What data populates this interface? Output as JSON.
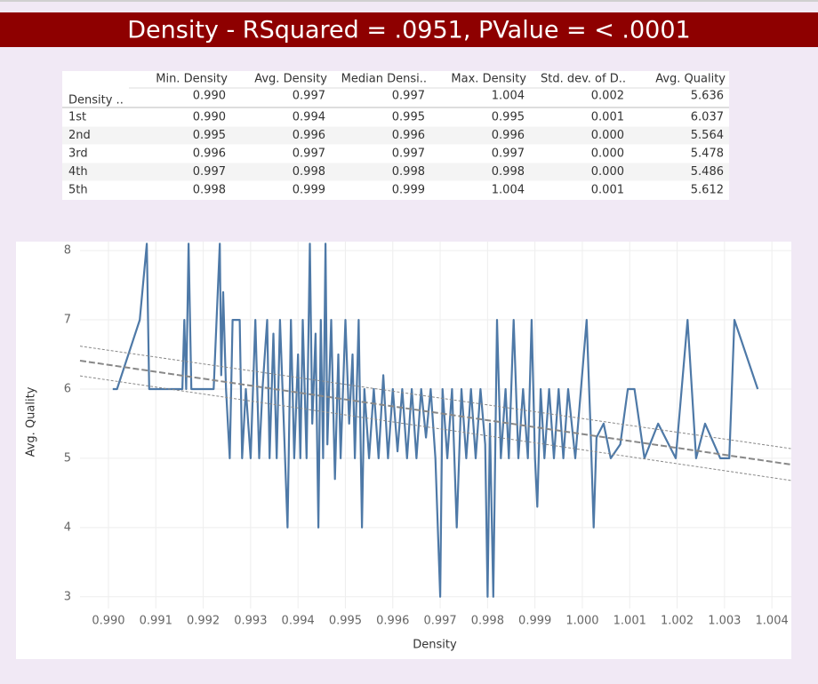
{
  "title": "Density - RSquared = .0951, PValue = < .0001",
  "table": {
    "corner": "Density ..",
    "columns": [
      "Min. Density",
      "Avg. Density",
      "Median Densi..",
      "Max. Density",
      "Std. dev. of D..",
      "Avg. Quality"
    ],
    "total": [
      "0.990",
      "0.997",
      "0.997",
      "1.004",
      "0.002",
      "5.636"
    ],
    "rows": [
      {
        "label": "1st",
        "cells": [
          "0.990",
          "0.994",
          "0.995",
          "0.995",
          "0.001",
          "6.037"
        ]
      },
      {
        "label": "2nd",
        "cells": [
          "0.995",
          "0.996",
          "0.996",
          "0.996",
          "0.000",
          "5.564"
        ]
      },
      {
        "label": "3rd",
        "cells": [
          "0.996",
          "0.997",
          "0.997",
          "0.997",
          "0.000",
          "5.478"
        ]
      },
      {
        "label": "4th",
        "cells": [
          "0.997",
          "0.998",
          "0.998",
          "0.998",
          "0.000",
          "5.486"
        ]
      },
      {
        "label": "5th",
        "cells": [
          "0.998",
          "0.999",
          "0.999",
          "1.004",
          "0.001",
          "5.612"
        ]
      }
    ]
  },
  "chart_data": {
    "type": "line",
    "x_label": "Density",
    "y_label": "Avg. Quality",
    "color": "#4e79a7",
    "x": [
      0.99009,
      0.99018,
      0.99066,
      0.99081,
      0.99086,
      0.99156,
      0.9916,
      0.99164,
      0.99169,
      0.99175,
      0.99188,
      0.99222,
      0.99235,
      0.99238,
      0.99242,
      0.99248,
      0.99256,
      0.99262,
      0.99277,
      0.99282,
      0.9929,
      0.993,
      0.9931,
      0.99318,
      0.99325,
      0.99335,
      0.9934,
      0.99348,
      0.99355,
      0.99362,
      0.9937,
      0.99378,
      0.99385,
      0.99392,
      0.994,
      0.99405,
      0.9941,
      0.99418,
      0.99425,
      0.9943,
      0.99437,
      0.99443,
      0.99448,
      0.99453,
      0.99458,
      0.99462,
      0.9947,
      0.99478,
      0.99485,
      0.9949,
      0.995,
      0.99508,
      0.99515,
      0.9952,
      0.99528,
      0.99535,
      0.9954,
      0.9955,
      0.9956,
      0.9957,
      0.9958,
      0.9959,
      0.996,
      0.9961,
      0.9962,
      0.9963,
      0.9964,
      0.9965,
      0.9966,
      0.9967,
      0.9968,
      0.9969,
      0.997,
      0.99705,
      0.99715,
      0.99725,
      0.99735,
      0.99745,
      0.99755,
      0.99765,
      0.99775,
      0.99785,
      0.99795,
      0.998,
      0.99805,
      0.99812,
      0.9982,
      0.99828,
      0.99838,
      0.99845,
      0.99855,
      0.99865,
      0.99875,
      0.99885,
      0.99893,
      0.999,
      0.99905,
      0.99912,
      0.9992,
      0.9993,
      0.9994,
      0.9995,
      0.9996,
      0.9997,
      0.99985,
      1.00009,
      1.00017,
      1.00024,
      1.0003,
      1.00045,
      1.0006,
      1.0008,
      1.00096,
      1.0011,
      1.00131,
      1.0016,
      1.00197,
      1.00222,
      1.0024,
      1.00259,
      1.00291,
      1.0031,
      1.00321,
      1.0037
    ],
    "values": [
      6,
      6,
      7,
      8.1,
      6,
      6,
      7,
      6,
      8.1,
      6,
      6,
      6,
      8.1,
      6.2,
      7.4,
      6,
      5,
      7,
      7,
      5,
      6,
      5,
      7,
      5,
      6,
      7,
      5,
      6.8,
      5,
      7,
      5.5,
      4,
      7,
      5,
      6.5,
      5,
      7,
      5,
      8.1,
      5.5,
      6.8,
      4,
      7,
      5,
      8.1,
      5.2,
      7,
      4.7,
      6.5,
      5,
      7,
      5.5,
      6.5,
      5,
      7,
      4,
      6,
      5,
      6,
      5,
      6.2,
      5,
      6,
      5.1,
      6,
      5,
      6,
      5,
      6,
      5.3,
      6,
      5,
      3,
      6,
      5,
      6,
      4,
      6,
      5,
      6,
      5,
      6,
      5.2,
      3,
      5.5,
      3,
      7,
      5,
      6,
      5,
      7,
      5,
      6,
      5,
      7,
      5,
      4.3,
      6,
      5,
      6,
      5,
      6,
      5,
      6,
      5,
      7,
      5.5,
      4,
      5.3,
      5.5,
      5,
      5.2,
      6,
      6,
      5,
      5.5,
      5,
      7,
      5,
      5.5,
      5,
      5,
      7,
      6
    ],
    "trend": {
      "color": "#888888",
      "x": [
        0.9894,
        1.0044
      ],
      "y": [
        6.41,
        4.91
      ],
      "upper": [
        6.62,
        5.14
      ],
      "lower": [
        6.19,
        4.68
      ]
    },
    "xlim": [
      0.9894,
      1.00441
    ],
    "ylim": [
      2.83,
      8.13
    ],
    "xticks": [
      {
        "value": 0.99,
        "label": "0.990"
      },
      {
        "value": 0.991,
        "label": "0.991"
      },
      {
        "value": 0.992,
        "label": "0.992"
      },
      {
        "value": 0.993,
        "label": "0.993"
      },
      {
        "value": 0.994,
        "label": "0.994"
      },
      {
        "value": 0.995,
        "label": "0.995"
      },
      {
        "value": 0.996,
        "label": "0.996"
      },
      {
        "value": 0.997,
        "label": "0.997"
      },
      {
        "value": 0.998,
        "label": "0.998"
      },
      {
        "value": 0.999,
        "label": "0.999"
      },
      {
        "value": 1.0,
        "label": "1.000"
      },
      {
        "value": 1.001,
        "label": "1.001"
      },
      {
        "value": 1.002,
        "label": "1.002"
      },
      {
        "value": 1.003,
        "label": "1.003"
      },
      {
        "value": 1.004,
        "label": "1.004"
      }
    ],
    "yticks": [
      3,
      4,
      5,
      6,
      7,
      8
    ],
    "grid": true
  }
}
